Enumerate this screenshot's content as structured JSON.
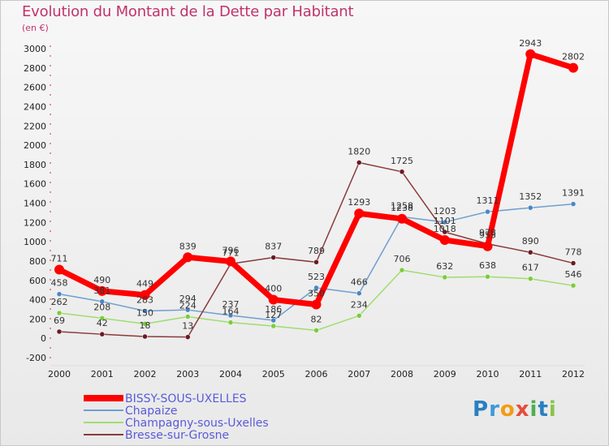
{
  "title": "Evolution du Montant de la Dette par Habitant",
  "subtitle": "(en €)",
  "logo": {
    "text": "Proxiti",
    "letters": [
      "P",
      "r",
      "o",
      "x",
      "i",
      "t",
      "i"
    ],
    "colors": [
      "#2a7fc1",
      "#3c9bd6",
      "#f39c12",
      "#e74c3c",
      "#4caf50",
      "#2a7fc1",
      "#8bc34a"
    ]
  },
  "chart_data": {
    "type": "line",
    "categories": [
      "2000",
      "2001",
      "2002",
      "2003",
      "2004",
      "2005",
      "2006",
      "2007",
      "2008",
      "2009",
      "2010",
      "2011",
      "2012"
    ],
    "yticks": [
      -200,
      0,
      200,
      400,
      600,
      800,
      1000,
      1200,
      1400,
      1600,
      1800,
      2000,
      2200,
      2400,
      2600,
      2800,
      3000
    ],
    "ylim": [
      -200,
      3000
    ],
    "grid": false,
    "legend_position": "bottom-left",
    "series": [
      {
        "name": "Chapaize",
        "color": "#6f9fd0",
        "marker": "#4a86c5",
        "width": 1.5,
        "values": [
          458,
          381,
          283,
          294,
          237,
          186,
          523,
          466,
          1258,
          1203,
          1311,
          1352,
          1391
        ],
        "labels": [
          "458",
          "381",
          "283",
          "294",
          "237",
          "186",
          "523",
          "466",
          "1258",
          "1203",
          "1311",
          "1352",
          "1391"
        ]
      },
      {
        "name": "Champagny-sous-Uxelles",
        "color": "#9fdd6f",
        "marker": "#7ccc3c",
        "width": 1.5,
        "values": [
          262,
          208,
          150,
          224,
          164,
          127,
          82,
          234,
          706,
          632,
          638,
          617,
          546
        ],
        "labels": [
          "262",
          "208",
          "150",
          "224",
          "164",
          "127",
          "82",
          "234",
          "706",
          "632",
          "638",
          "617",
          "546"
        ]
      },
      {
        "name": "Bresse-sur-Grosne",
        "color": "#8a3a3a",
        "marker": "#6a1a22",
        "width": 1.5,
        "values": [
          69,
          42,
          18,
          13,
          771,
          837,
          789,
          1820,
          1725,
          1101,
          978,
          890,
          778
        ],
        "labels": [
          "69",
          "42",
          "18",
          "13",
          "771",
          "837",
          "789",
          "1820",
          "1725",
          "1101",
          "978",
          "890",
          "778"
        ]
      },
      {
        "name": "BISSY-SOUS-UXELLES",
        "color": "#ff0000",
        "marker": "#ff0000",
        "width": 7,
        "values": [
          711,
          490,
          449,
          839,
          796,
          400,
          350,
          1293,
          1238,
          1018,
          953,
          2943,
          2802
        ],
        "labels": [
          "711",
          "490",
          "449",
          "839",
          "796",
          "400",
          "350",
          "1293",
          "1238",
          "1018",
          "953",
          "2943",
          "2802"
        ]
      }
    ],
    "legend": [
      {
        "name": "BISSY-SOUS-UXELLES",
        "color": "#ff0000",
        "text_color": "#5a5adb",
        "thickness": 8
      },
      {
        "name": "Chapaize",
        "color": "#6f9fd0",
        "text_color": "#5a5adb",
        "thickness": 2
      },
      {
        "name": "Champagny-sous-Uxelles",
        "color": "#9fdd6f",
        "text_color": "#5a5adb",
        "thickness": 2
      },
      {
        "name": "Bresse-sur-Grosne",
        "color": "#8a3a3a",
        "text_color": "#5a5adb",
        "thickness": 2
      }
    ]
  }
}
